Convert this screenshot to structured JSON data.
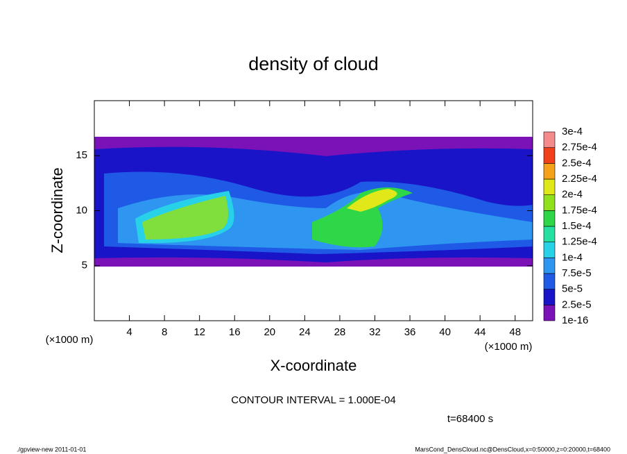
{
  "chart_data": {
    "type": "contour",
    "title": "density of cloud",
    "xlabel": "X-coordinate",
    "ylabel": "Z-coordinate",
    "x_unit": "(×1000 m)",
    "xlim": [
      0,
      50
    ],
    "xticks": [
      4,
      8,
      12,
      16,
      20,
      24,
      28,
      32,
      36,
      40,
      44,
      48
    ],
    "ylim": [
      0,
      20
    ],
    "yticks": [
      5,
      10,
      15
    ],
    "contour_interval": "CONTOUR INTERVAL = 1.000E-04",
    "time_label": "t=68400 s",
    "footer_left": "./gpview-new  2011-01-01",
    "footer_right": "MarsCond_DensCloud.nc@DensCloud,x=0:50000,z=0:20000,t=68400",
    "colorbar": {
      "levels": [
        {
          "value": 1e-16,
          "label": "1e-16"
        },
        {
          "value": 2.5e-05,
          "label": "2.5e-5"
        },
        {
          "value": 5e-05,
          "label": "5e-5"
        },
        {
          "value": 7.5e-05,
          "label": "7.5e-5"
        },
        {
          "value": 0.0001,
          "label": "1e-4"
        },
        {
          "value": 0.000125,
          "label": "1.25e-4"
        },
        {
          "value": 0.00015,
          "label": "1.5e-4"
        },
        {
          "value": 0.000175,
          "label": "1.75e-4"
        },
        {
          "value": 0.0002,
          "label": "2e-4"
        },
        {
          "value": 0.000225,
          "label": "2.25e-4"
        },
        {
          "value": 0.00025,
          "label": "2.5e-4"
        },
        {
          "value": 0.000275,
          "label": "2.75e-4"
        },
        {
          "value": 0.0003,
          "label": "3e-4"
        }
      ],
      "colors": [
        "#7a12b8",
        "#1a14c8",
        "#1f5ae6",
        "#2e96f0",
        "#27d2e8",
        "#25e0a0",
        "#2fd648",
        "#90e01e",
        "#e0e81a",
        "#f5a21a",
        "#f0401a",
        "#f58a8a"
      ]
    }
  }
}
